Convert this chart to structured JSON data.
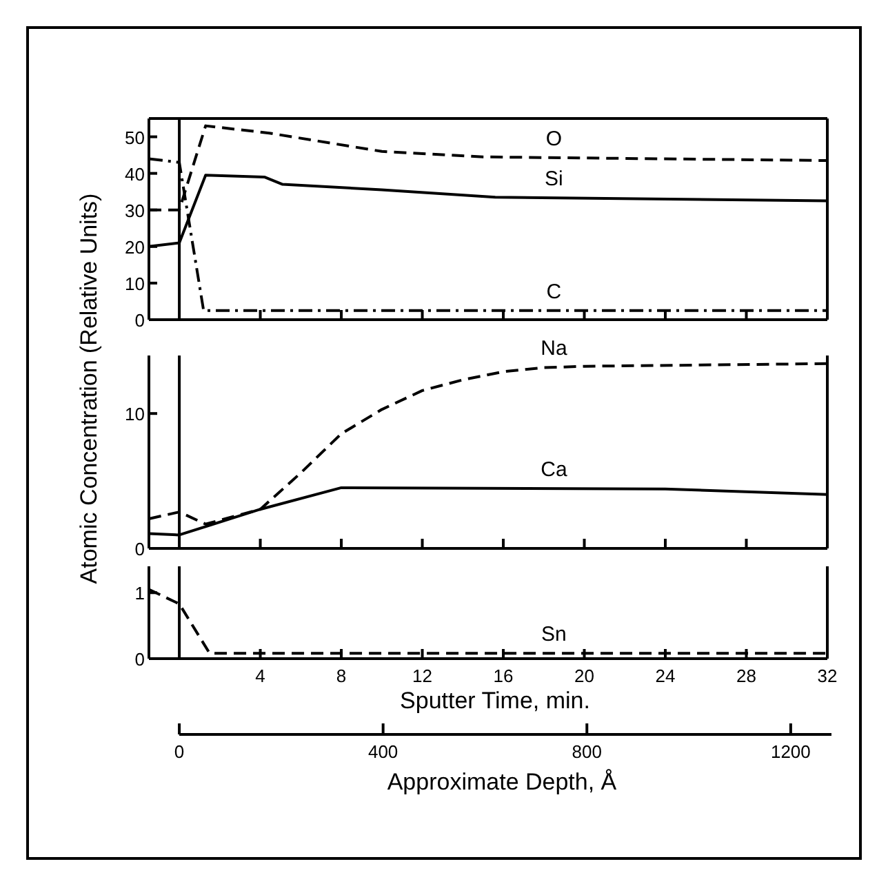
{
  "chart_data": [
    {
      "type": "line",
      "ylabel": "Atomic Concentration (Relative Units)",
      "xlim": [
        -1.5,
        32
      ],
      "xticks": [
        4,
        8,
        12,
        16,
        20,
        24,
        28,
        32
      ],
      "ylim": [
        0,
        55
      ],
      "yticks": [
        0,
        10,
        20,
        30,
        40,
        50
      ],
      "tick_labels": "y",
      "ref_lines": [
        {
          "axis": "x",
          "value": 0
        }
      ],
      "series": [
        {
          "name": "O",
          "color": "#000000",
          "line_style": "dashed",
          "x": [
            -1.5,
            0,
            1.3,
            4.45,
            10,
            15,
            32
          ],
          "values": [
            30,
            30,
            53,
            51,
            46,
            44.5,
            43.5
          ]
        },
        {
          "name": "Si",
          "color": "#000000",
          "line_style": "solid",
          "x": [
            -1.5,
            0,
            1.3,
            4.2,
            5.1,
            10,
            15.6,
            32
          ],
          "values": [
            20,
            21,
            39.5,
            39,
            37,
            35.5,
            33.5,
            32.5
          ]
        },
        {
          "name": "C",
          "color": "#000000",
          "line_style": "dashdot",
          "x": [
            -1.5,
            0,
            1.2,
            32
          ],
          "values": [
            44,
            43,
            2.5,
            2.5
          ]
        }
      ]
    },
    {
      "type": "line",
      "xlim": [
        -1.5,
        32
      ],
      "xticks": [
        4,
        8,
        12,
        16,
        20,
        24,
        28,
        32
      ],
      "ylim": [
        0,
        14.3
      ],
      "yticks": [
        0,
        10
      ],
      "tick_labels": "y",
      "ref_lines": [
        {
          "axis": "x",
          "value": 0
        }
      ],
      "series": [
        {
          "name": "Na",
          "color": "#000000",
          "line_style": "dashed",
          "x": [
            -1.5,
            0,
            1.3,
            4,
            6,
            8,
            10,
            12,
            14,
            16,
            18,
            20,
            32
          ],
          "values": [
            2.2,
            2.7,
            1.8,
            2.9,
            5.6,
            8.5,
            10.3,
            11.7,
            12.5,
            13.1,
            13.4,
            13.5,
            13.7
          ]
        },
        {
          "name": "Ca",
          "color": "#000000",
          "line_style": "solid",
          "x": [
            -1.5,
            0,
            4,
            8,
            24,
            32
          ],
          "values": [
            1.1,
            1,
            2.9,
            4.5,
            4.4,
            4
          ]
        }
      ]
    },
    {
      "type": "line",
      "xlabel": "Sputter Time, min.",
      "x2label": "Approximate Depth, Å",
      "xlim": [
        -1.5,
        32
      ],
      "xticks": [
        4,
        8,
        12,
        16,
        20,
        24,
        28,
        32
      ],
      "x2lim": [
        0,
        1280
      ],
      "x2ticks": [
        0,
        400,
        800,
        1200
      ],
      "ylim": [
        0,
        1.4
      ],
      "yticks": [
        0,
        1
      ],
      "ref_lines": [
        {
          "axis": "x",
          "value": 0
        }
      ],
      "series": [
        {
          "name": "Sn",
          "color": "#000000",
          "line_style": "dashed",
          "x": [
            -1.5,
            0,
            1.5,
            32
          ],
          "values": [
            1.05,
            0.83,
            0.08,
            0.08
          ]
        }
      ]
    }
  ]
}
